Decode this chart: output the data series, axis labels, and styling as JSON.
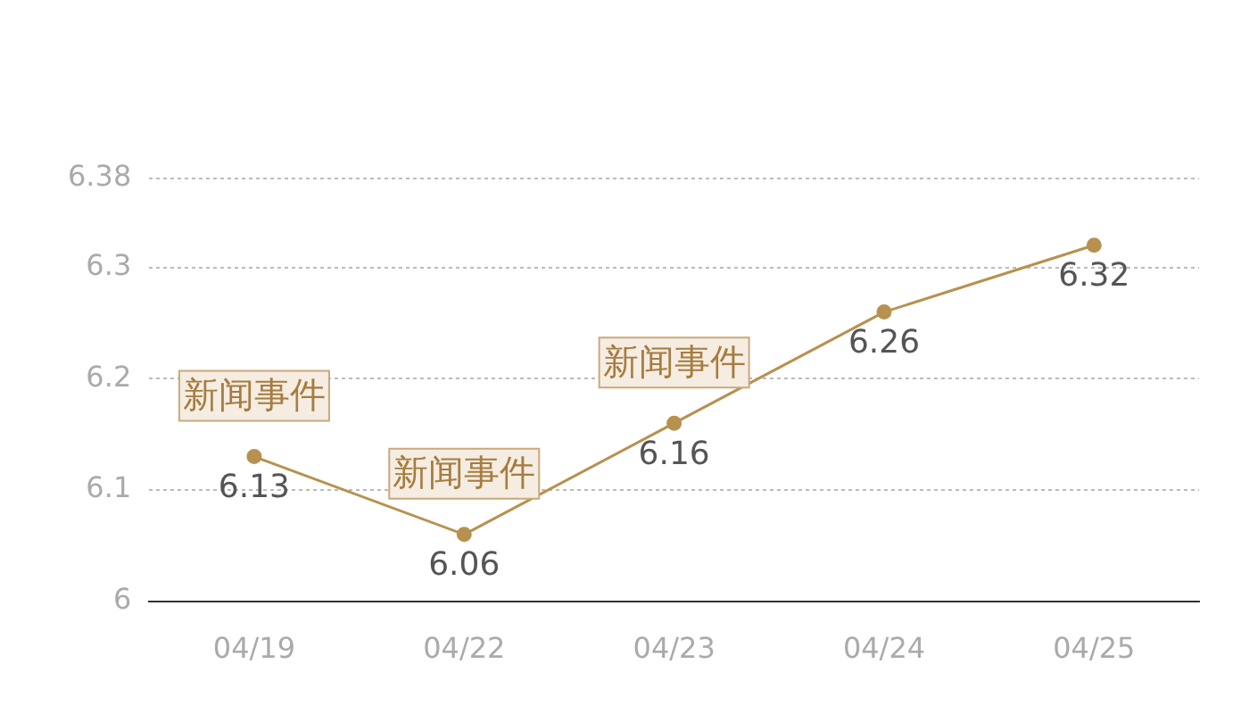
{
  "chart_data": {
    "type": "line",
    "categories": [
      "04/19",
      "04/22",
      "04/23",
      "04/24",
      "04/25"
    ],
    "series": [
      {
        "color": "#b8914e",
        "values": [
          6.13,
          6.06,
          6.16,
          6.26,
          6.32
        ]
      }
    ],
    "ylim": [
      6,
      6.38
    ],
    "yticks": [
      6,
      6.1,
      6.2,
      6.3,
      6.38
    ],
    "grid": "y",
    "marker": "circle",
    "line_style": "solid",
    "data_labels": true,
    "annotations": [
      {
        "text": "新闻事件",
        "x": "04/19",
        "y": 6.13
      },
      {
        "text": "新闻事件",
        "x": "04/22",
        "y": 6.06
      },
      {
        "text": "新闻事件",
        "x": "04/23",
        "y": 6.16
      }
    ]
  }
}
